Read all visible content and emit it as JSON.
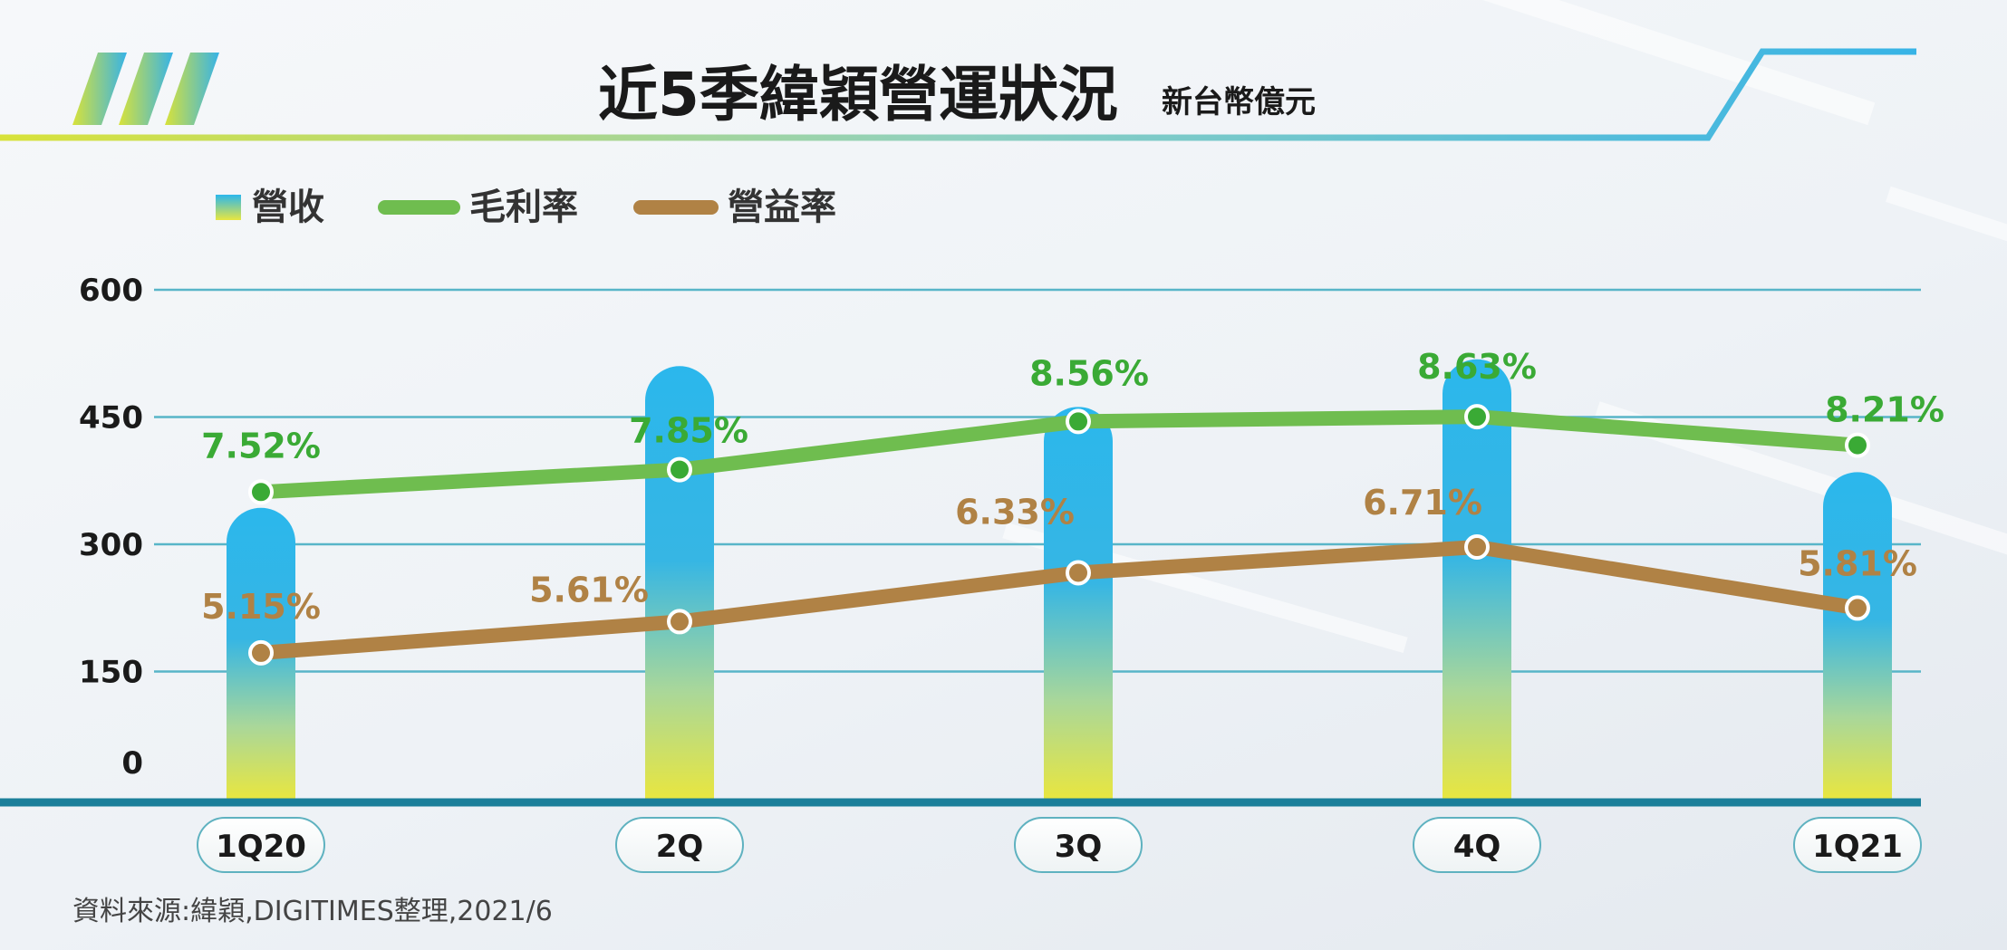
{
  "title": "近5季緯穎營運狀況",
  "unit": "新台幣億元",
  "source": "資料來源:緯穎,DIGITIMES整理,2021/6",
  "colors": {
    "gross_margin": "#6fbd4f",
    "gross_margin_label": "#3aaa35",
    "operating_margin": "#b08245",
    "bar_top": "#2bb7ec",
    "bar_bottom": "#e8e640",
    "baseline": "#1b7f9a",
    "grid": "#58b5c8"
  },
  "chart_data": {
    "type": "bar",
    "categories": [
      "1Q20",
      "2Q",
      "3Q",
      "4Q",
      "1Q21"
    ],
    "ylim": [
      0,
      600
    ],
    "yticks": [
      0,
      150,
      300,
      450,
      600
    ],
    "legend": {
      "placement": "top-left",
      "entries": [
        "營收",
        "毛利率",
        "營益率"
      ]
    },
    "grid": true,
    "series": [
      {
        "name": "營收",
        "type": "bar",
        "values": [
          343,
          510,
          462,
          518,
          385
        ]
      },
      {
        "name": "毛利率",
        "type": "line",
        "values": [
          7.52,
          7.85,
          8.56,
          8.63,
          8.21
        ],
        "labels": [
          "7.52%",
          "7.85%",
          "8.56%",
          "8.63%",
          "8.21%"
        ]
      },
      {
        "name": "營益率",
        "type": "line",
        "values": [
          5.15,
          5.61,
          6.33,
          6.71,
          5.81
        ],
        "labels": [
          "5.15%",
          "5.61%",
          "6.33%",
          "6.71%",
          "5.81%"
        ]
      }
    ]
  }
}
